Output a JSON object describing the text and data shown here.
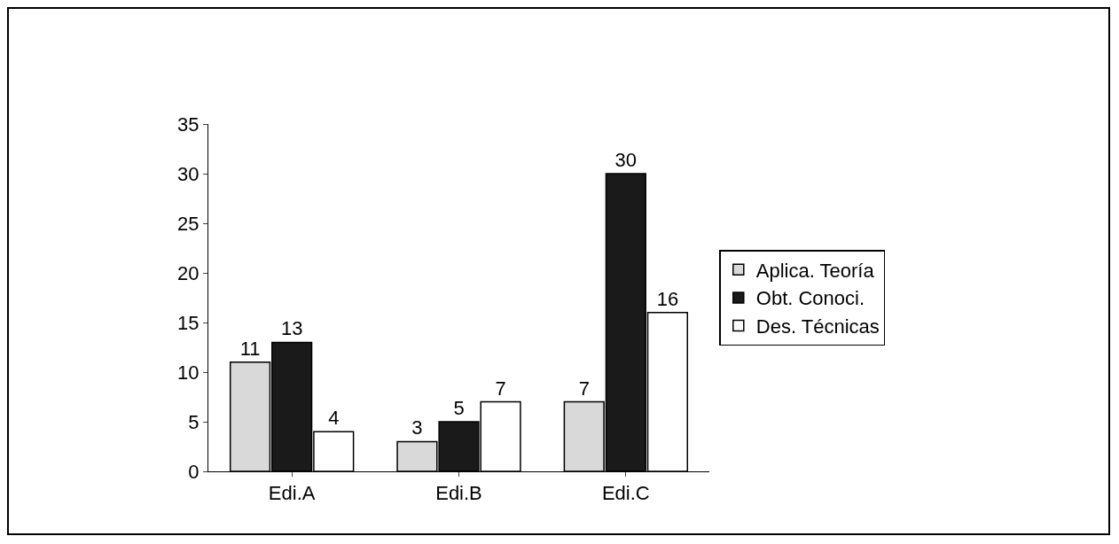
{
  "chart_data": {
    "type": "bar",
    "categories": [
      "Edi.A",
      "Edi.B",
      "Edi.C"
    ],
    "series": [
      {
        "name": "Aplica. Teoría",
        "color": "#d9d9d9",
        "values": [
          11,
          3,
          7
        ]
      },
      {
        "name": "Obt. Conoci.",
        "color": "#1a1a1a",
        "values": [
          13,
          5,
          30
        ]
      },
      {
        "name": "Des. Técnicas",
        "color": "#ffffff",
        "values": [
          4,
          7,
          16
        ]
      }
    ],
    "ylim": [
      0,
      35
    ],
    "yticks": [
      0,
      5,
      10,
      15,
      20,
      25,
      30,
      35
    ],
    "data_labels": true,
    "grid": false,
    "legend": "right"
  }
}
